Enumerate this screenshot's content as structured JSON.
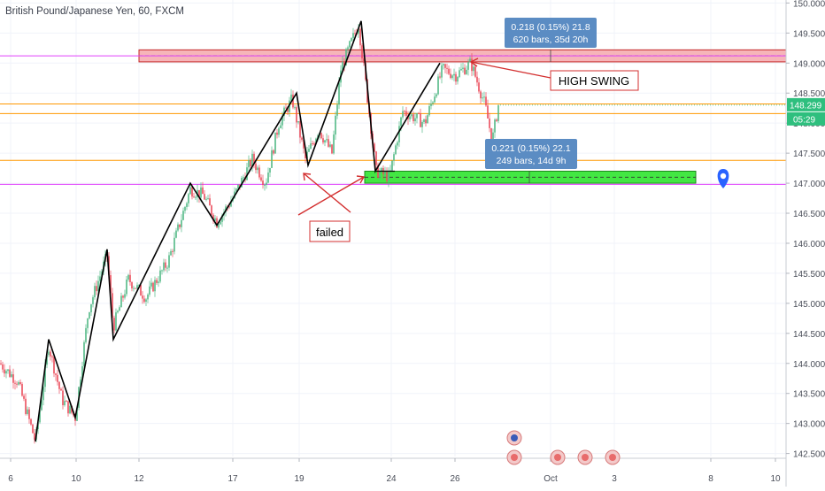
{
  "header": {
    "title": "British Pound/Japanese Yen, 60, FXCM"
  },
  "colors": {
    "up": "#53b987",
    "down": "#eb4d5c",
    "resistance_fill": "#f4a3a8",
    "support_fill": "#39e639",
    "magenta": "#e040fb",
    "orange": "#ff9800",
    "label_box": "#5b8cc3",
    "price_tag": "#2ebf7e",
    "annotation": "#d32f2f",
    "pin": "#2962ff"
  },
  "annotations": {
    "measure_top": {
      "line1": "0.218 (0.15%) 21.8",
      "line2": "620 bars, 35d 20h"
    },
    "measure_bottom": {
      "line1": "0.221 (0.15%) 22.1",
      "line2": "249 bars, 14d 9h"
    },
    "high_swing": "HIGH SWING",
    "failed": "failed"
  },
  "price_tags": {
    "last": "148.299",
    "countdown": "05:29"
  },
  "chart_data": {
    "type": "candlestick",
    "title": "British Pound/Japanese Yen, 60, FXCM",
    "ylim": [
      142.45,
      150.05
    ],
    "y_ticks": [
      "150.000",
      "149.500",
      "149.000",
      "148.500",
      "148.000",
      "147.500",
      "147.000",
      "146.500",
      "146.000",
      "145.500",
      "145.000",
      "144.500",
      "144.000",
      "143.500",
      "143.000",
      "142.500"
    ],
    "x_ticks": [
      "6",
      "10",
      "12",
      "17",
      "19",
      "24",
      "26",
      "Oct",
      "3",
      "8",
      "10"
    ],
    "horizontal_lines": [
      {
        "name": "magenta-upper",
        "value": 149.12,
        "color": "magenta"
      },
      {
        "name": "orange-upper",
        "value": 148.32,
        "color": "orange"
      },
      {
        "name": "orange-mid",
        "value": 148.16,
        "color": "orange"
      },
      {
        "name": "orange-lower",
        "value": 147.38,
        "color": "orange"
      },
      {
        "name": "magenta-lower",
        "value": 146.98,
        "color": "magenta"
      }
    ],
    "zones": [
      {
        "name": "resistance-zone",
        "y_top": 149.22,
        "y_bottom": 149.02
      },
      {
        "name": "support-zone",
        "y_top": 147.2,
        "y_bottom": 147.0
      }
    ],
    "swing_path": [
      [
        142.7,
        0
      ],
      [
        144.4,
        0
      ],
      [
        143.1,
        0
      ],
      [
        145.9,
        0
      ],
      [
        144.4,
        0
      ],
      [
        147.0,
        0
      ],
      [
        146.3,
        0
      ],
      [
        148.5,
        0
      ],
      [
        147.3,
        0
      ],
      [
        149.7,
        0
      ],
      [
        147.2,
        0
      ],
      [
        149.0,
        0
      ]
    ],
    "last_price": 148.299
  }
}
